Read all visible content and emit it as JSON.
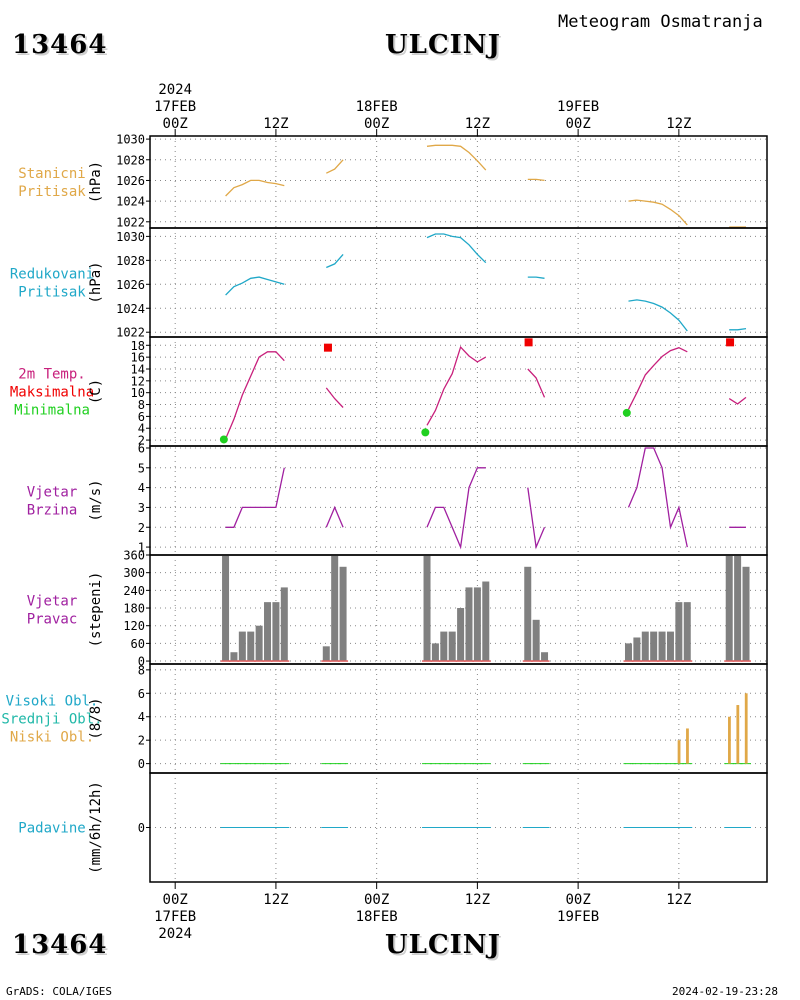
{
  "header": {
    "station_id": "13464",
    "station_name": "ULCINJ",
    "subtitle": "Meteogram Osmatranja"
  },
  "footer": {
    "left": "GrADS: COLA/IGES",
    "right": "2024-02-19-23:28"
  },
  "colors": {
    "stanicni": "#e0a848",
    "redukovani": "#20a8c8",
    "temp_label": "#c8207c",
    "tmax": "#f00000",
    "tmin": "#20d020",
    "wind": "#a020a0",
    "bars": "#808080",
    "bar_base": "#e06060",
    "cloud_high": "#20a8c8",
    "cloud_mid": "#20b8a8",
    "cloud_low": "#e0a848",
    "precip": "#20a8c8"
  },
  "time_axis": {
    "top_year": "2024",
    "bottom_year": "2024",
    "date_labels": [
      {
        "h": 0,
        "date": "17FEB",
        "hour": "00Z"
      },
      {
        "h": 12,
        "hour": "12Z"
      },
      {
        "h": 24,
        "date": "18FEB",
        "hour": "00Z"
      },
      {
        "h": 36,
        "hour": "12Z"
      },
      {
        "h": 48,
        "date": "19FEB",
        "hour": "00Z"
      },
      {
        "h": 60,
        "hour": "12Z"
      }
    ]
  },
  "chart_data": [
    {
      "type": "line",
      "label_lines": [
        "Stanicni",
        "Pritisak"
      ],
      "ylabel": "(hPa)",
      "ylim": [
        1021.4,
        1030.3
      ],
      "yticks": [
        1022,
        1024,
        1026,
        1028,
        1030
      ],
      "segments": [
        [
          [
            6,
            1024.5
          ],
          [
            7,
            1025.3
          ],
          [
            8,
            1025.6
          ],
          [
            9,
            1026
          ],
          [
            10,
            1026
          ],
          [
            11,
            1025.8
          ],
          [
            12,
            1025.7
          ],
          [
            13,
            1025.5
          ]
        ],
        [
          [
            18,
            1026.7
          ],
          [
            19,
            1027.1
          ],
          [
            20,
            1028
          ]
        ],
        [
          [
            30,
            1029.3
          ],
          [
            31,
            1029.4
          ],
          [
            32,
            1029.4
          ],
          [
            33,
            1029.4
          ],
          [
            34,
            1029.3
          ],
          [
            35,
            1028.7
          ],
          [
            36,
            1027.9
          ],
          [
            37,
            1027
          ]
        ],
        [
          [
            42,
            1026.1
          ],
          [
            43,
            1026.1
          ],
          [
            44,
            1026
          ]
        ],
        [
          [
            54,
            1024
          ],
          [
            55,
            1024.1
          ],
          [
            56,
            1024
          ],
          [
            57,
            1023.9
          ],
          [
            58,
            1023.7
          ],
          [
            59,
            1023.2
          ],
          [
            60,
            1022.6
          ],
          [
            61,
            1021.7
          ]
        ],
        [
          [
            66,
            1021.5
          ],
          [
            67,
            1021.5
          ],
          [
            68,
            1021.5
          ]
        ]
      ]
    },
    {
      "type": "line",
      "label_lines": [
        "Redukovani",
        "Pritisak"
      ],
      "ylabel": "(hPa)",
      "ylim": [
        1021.6,
        1030.7
      ],
      "yticks": [
        1022,
        1024,
        1026,
        1028,
        1030
      ],
      "segments": [
        [
          [
            6,
            1025.1
          ],
          [
            7,
            1025.8
          ],
          [
            8,
            1026.1
          ],
          [
            9,
            1026.5
          ],
          [
            10,
            1026.6
          ],
          [
            11,
            1026.4
          ],
          [
            12,
            1026.2
          ],
          [
            13,
            1026
          ]
        ],
        [
          [
            18,
            1027.4
          ],
          [
            19,
            1027.7
          ],
          [
            20,
            1028.5
          ]
        ],
        [
          [
            30,
            1029.9
          ],
          [
            31,
            1030.2
          ],
          [
            32,
            1030.2
          ],
          [
            33,
            1030
          ],
          [
            34,
            1029.9
          ],
          [
            35,
            1029.3
          ],
          [
            36,
            1028.5
          ],
          [
            37,
            1027.8
          ]
        ],
        [
          [
            42,
            1026.6
          ],
          [
            43,
            1026.6
          ],
          [
            44,
            1026.5
          ]
        ],
        [
          [
            54,
            1024.6
          ],
          [
            55,
            1024.7
          ],
          [
            56,
            1024.6
          ],
          [
            57,
            1024.4
          ],
          [
            58,
            1024.1
          ],
          [
            59,
            1023.6
          ],
          [
            60,
            1023
          ],
          [
            61,
            1022.1
          ]
        ],
        [
          [
            66,
            1022.2
          ],
          [
            67,
            1022.2
          ],
          [
            68,
            1022.3
          ]
        ]
      ]
    },
    {
      "type": "line",
      "label_lines": [
        "2m Temp.",
        "Maksimalna",
        "Minimalna"
      ],
      "ylabel": "(C)",
      "ylim": [
        1,
        19.4
      ],
      "yticks": [
        2,
        4,
        6,
        8,
        10,
        12,
        14,
        16,
        18
      ],
      "segments": [
        [
          [
            6,
            2.2
          ],
          [
            7,
            5.5
          ],
          [
            8,
            9.6
          ],
          [
            9,
            12.8
          ],
          [
            10,
            16
          ],
          [
            11,
            16.9
          ],
          [
            12,
            16.9
          ],
          [
            13,
            15.4
          ]
        ],
        [
          [
            18,
            10.8
          ],
          [
            19,
            9
          ],
          [
            20,
            7.5
          ]
        ],
        [
          [
            30,
            4.5
          ],
          [
            31,
            7
          ],
          [
            32,
            10.6
          ],
          [
            33,
            13.2
          ],
          [
            34,
            17.7
          ],
          [
            35,
            16.2
          ],
          [
            36,
            15.2
          ],
          [
            37,
            16
          ]
        ],
        [
          [
            42,
            14
          ],
          [
            43,
            12.5
          ],
          [
            44,
            9.2
          ]
        ],
        [
          [
            54,
            7.2
          ],
          [
            55,
            10
          ],
          [
            56,
            13
          ],
          [
            57,
            14.6
          ],
          [
            58,
            16.1
          ],
          [
            59,
            17.1
          ],
          [
            60,
            17.6
          ],
          [
            61,
            16.9
          ]
        ],
        [
          [
            66,
            9
          ],
          [
            67,
            8.1
          ],
          [
            68,
            9.2
          ]
        ]
      ],
      "tmax": [
        [
          18.2,
          17.6
        ],
        [
          42.1,
          18.5
        ],
        [
          66.1,
          18.5
        ]
      ],
      "tmin": [
        [
          5.8,
          2.1
        ],
        [
          29.8,
          3.3
        ],
        [
          53.8,
          6.6
        ]
      ]
    },
    {
      "type": "line",
      "label_lines": [
        "Vjetar",
        "Brzina"
      ],
      "ylabel": "(m/s)",
      "ylim": [
        0.6,
        6.1
      ],
      "yticks": [
        1,
        2,
        3,
        4,
        5,
        6
      ],
      "segments": [
        [
          [
            6,
            2
          ],
          [
            7,
            2
          ],
          [
            8,
            3
          ],
          [
            9,
            3
          ],
          [
            10,
            3
          ],
          [
            11,
            3
          ],
          [
            12,
            3
          ],
          [
            13,
            5
          ]
        ],
        [
          [
            18,
            2
          ],
          [
            19,
            3
          ],
          [
            20,
            2
          ]
        ],
        [
          [
            30,
            2
          ],
          [
            31,
            3
          ],
          [
            32,
            3
          ],
          [
            33,
            2
          ],
          [
            34,
            1
          ],
          [
            35,
            4
          ],
          [
            36,
            5
          ],
          [
            37,
            5
          ]
        ],
        [
          [
            42,
            4
          ],
          [
            43,
            1
          ],
          [
            44,
            2
          ]
        ],
        [
          [
            54,
            3
          ],
          [
            55,
            4
          ],
          [
            56,
            6
          ],
          [
            57,
            6
          ],
          [
            58,
            5
          ],
          [
            59,
            2
          ],
          [
            60,
            3
          ],
          [
            61,
            1
          ]
        ],
        [
          [
            66,
            2
          ],
          [
            67,
            2
          ],
          [
            68,
            2
          ]
        ]
      ]
    },
    {
      "type": "bar",
      "label_lines": [
        "Vjetar",
        "Pravac"
      ],
      "ylabel": "(stepeni)",
      "ylim": [
        -10,
        360
      ],
      "yticks": [
        0,
        60,
        120,
        180,
        240,
        300,
        360
      ],
      "bars": [
        [
          6,
          360
        ],
        [
          7,
          30
        ],
        [
          8,
          100
        ],
        [
          9,
          100
        ],
        [
          10,
          120
        ],
        [
          11,
          200
        ],
        [
          12,
          200
        ],
        [
          13,
          250
        ],
        [
          18,
          50
        ],
        [
          19,
          360
        ],
        [
          20,
          320
        ],
        [
          30,
          360
        ],
        [
          31,
          60
        ],
        [
          32,
          100
        ],
        [
          33,
          100
        ],
        [
          34,
          180
        ],
        [
          35,
          250
        ],
        [
          36,
          250
        ],
        [
          37,
          270
        ],
        [
          42,
          320
        ],
        [
          43,
          140
        ],
        [
          44,
          30
        ],
        [
          54,
          60
        ],
        [
          55,
          80
        ],
        [
          56,
          100
        ],
        [
          57,
          100
        ],
        [
          58,
          100
        ],
        [
          59,
          100
        ],
        [
          60,
          200
        ],
        [
          61,
          200
        ],
        [
          66,
          360
        ],
        [
          67,
          360
        ],
        [
          68,
          320
        ]
      ]
    },
    {
      "type": "bar",
      "label_lines": [
        "Visoki Obl.",
        "Srednji Obl.",
        "Niski Obl."
      ],
      "ylabel": "(8/8)",
      "ylim": [
        -0.8,
        8.5
      ],
      "yticks": [
        0,
        2,
        4,
        6,
        8
      ],
      "low_cloud": [
        [
          60,
          2
        ],
        [
          61,
          3
        ],
        [
          66,
          4
        ],
        [
          67,
          5
        ],
        [
          68,
          6
        ]
      ],
      "obs_hours": [
        6,
        7,
        8,
        9,
        10,
        11,
        12,
        13,
        18,
        19,
        20,
        30,
        31,
        32,
        33,
        34,
        35,
        36,
        37,
        42,
        43,
        44,
        54,
        55,
        56,
        57,
        58,
        59,
        60,
        61,
        66,
        67,
        68
      ]
    },
    {
      "type": "bar",
      "label_lines": [
        "Padavine"
      ],
      "ylabel": "(mm/6h/12h)",
      "ylim": [
        -1,
        1
      ],
      "yticks": [
        0
      ],
      "obs_hours": [
        6,
        7,
        8,
        9,
        10,
        11,
        12,
        13,
        18,
        19,
        20,
        30,
        31,
        32,
        33,
        34,
        35,
        36,
        37,
        42,
        43,
        44,
        54,
        55,
        56,
        57,
        58,
        59,
        60,
        61,
        66,
        67,
        68
      ]
    }
  ]
}
